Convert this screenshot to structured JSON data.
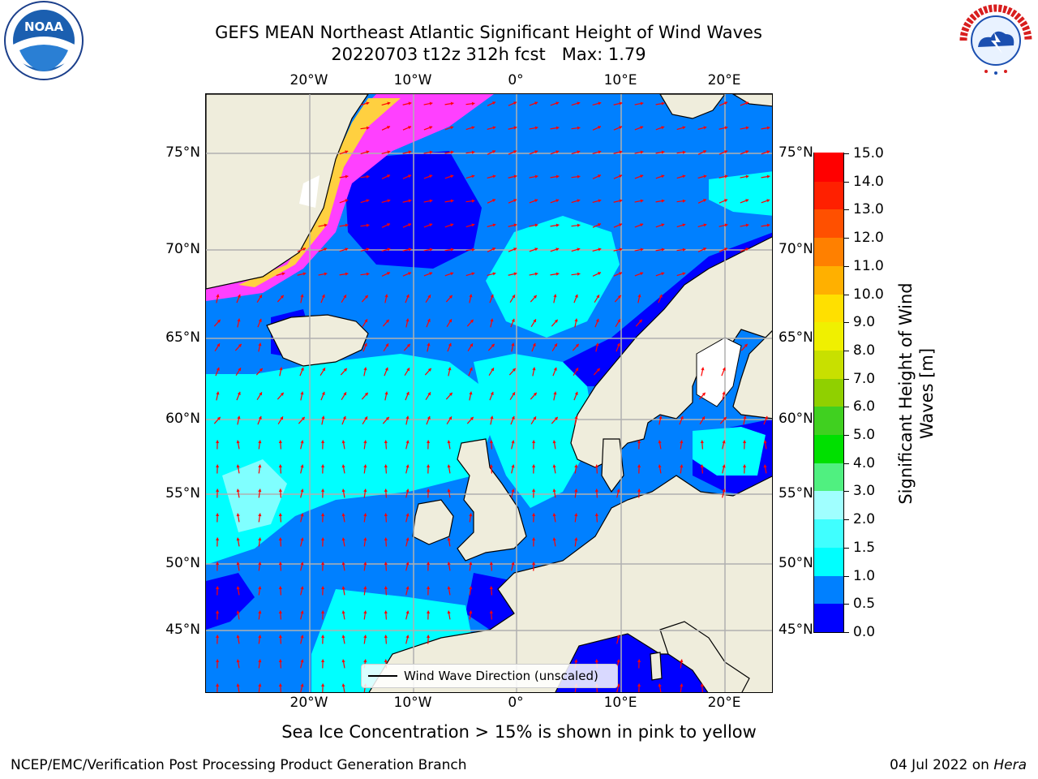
{
  "header": {
    "title_line1": "GEFS MEAN Northeast Atlantic Significant Height of Wind Waves",
    "title_line2": "20220703 t12z 312h fcst   Max: 1.79"
  },
  "logos": {
    "left": {
      "name": "NOAA",
      "ring_text": "NATIONAL OCEANIC AND ATMOSPHERIC ADMINISTRATION · U.S. DEPARTMENT OF COMMERCE"
    },
    "right": {
      "name": "NATIONAL WEATHER SERVICE"
    }
  },
  "map": {
    "lon_labels": [
      "20°W",
      "10°W",
      "0°",
      "10°E",
      "20°E"
    ],
    "lat_labels": [
      "75°N",
      "70°N",
      "65°N",
      "60°N",
      "55°N",
      "50°N",
      "45°N"
    ],
    "colors": {
      "ocean_low": "#0000ff",
      "ocean_mid": "#0080ff",
      "ocean_high": "#00ffff",
      "ocean_vhigh": "#80ffff",
      "land": "#efeddc",
      "ice_pink": "#ff40ff",
      "ice_yellow": "#ffd040",
      "arrow": "#ff0000",
      "grid": "#b0b0b0"
    }
  },
  "colorbar": {
    "title": "Significant Height of Wind Waves [m]",
    "tick_labels": [
      "0.0",
      "0.5",
      "1.0",
      "1.5",
      "2.0",
      "3.0",
      "4.0",
      "5.0",
      "6.0",
      "7.0",
      "8.0",
      "9.0",
      "10.0",
      "11.0",
      "12.0",
      "13.0",
      "14.0",
      "15.0"
    ],
    "colors": [
      "#0000ff",
      "#0080ff",
      "#00ffff",
      "#40ffff",
      "#a0ffff",
      "#50f080",
      "#00e000",
      "#40d020",
      "#90d000",
      "#c8e000",
      "#f0f000",
      "#ffe000",
      "#ffb000",
      "#ff8000",
      "#ff5000",
      "#ff2000",
      "#ff0000"
    ]
  },
  "legend": {
    "label": "Wind Wave Direction (unscaled)"
  },
  "subtitle": "Sea Ice Concentration > 15% is shown in pink to yellow",
  "footer": {
    "left": "NCEP/EMC/Verification Post Processing Product Generation Branch",
    "date": "04 Jul 2022 on ",
    "host": "Hera"
  }
}
